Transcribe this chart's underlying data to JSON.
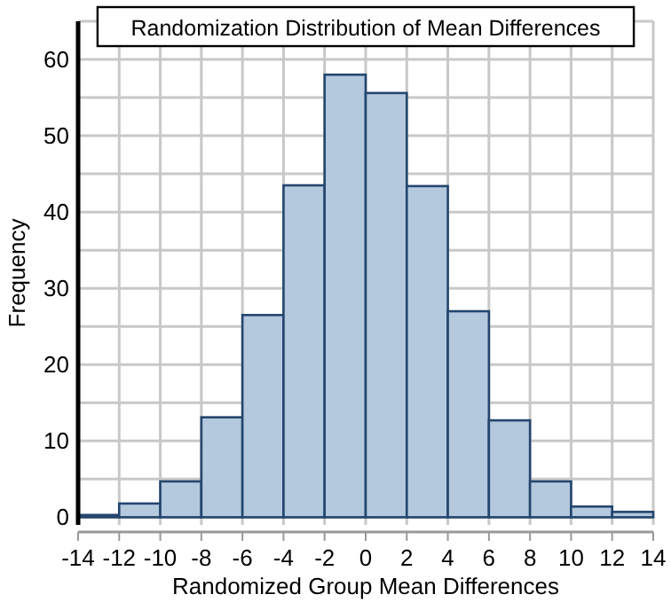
{
  "chart_data": {
    "type": "histogram",
    "title": "Randomization Distribution of Mean Differences",
    "xlabel": "Randomized Group Mean Differences",
    "ylabel": "Frequency",
    "bins": [
      -14,
      -12,
      -10,
      -8,
      -6,
      -4,
      -2,
      0,
      2,
      4,
      6,
      8,
      10,
      12,
      14
    ],
    "values": [
      0.3,
      1.8,
      4.7,
      13.1,
      26.5,
      43.5,
      58,
      55.6,
      43.4,
      27,
      12.7,
      4.7,
      1.4,
      0.7
    ],
    "color": "#b4c8de",
    "xlim": [
      -14,
      14
    ],
    "xticks": [
      -14,
      -12,
      -10,
      -8,
      -6,
      -4,
      -2,
      0,
      2,
      4,
      6,
      8,
      10,
      12,
      14
    ],
    "ylim": [
      -1,
      65
    ],
    "yticks": [
      0,
      10,
      20,
      30,
      40,
      50,
      60
    ],
    "grid": true
  }
}
